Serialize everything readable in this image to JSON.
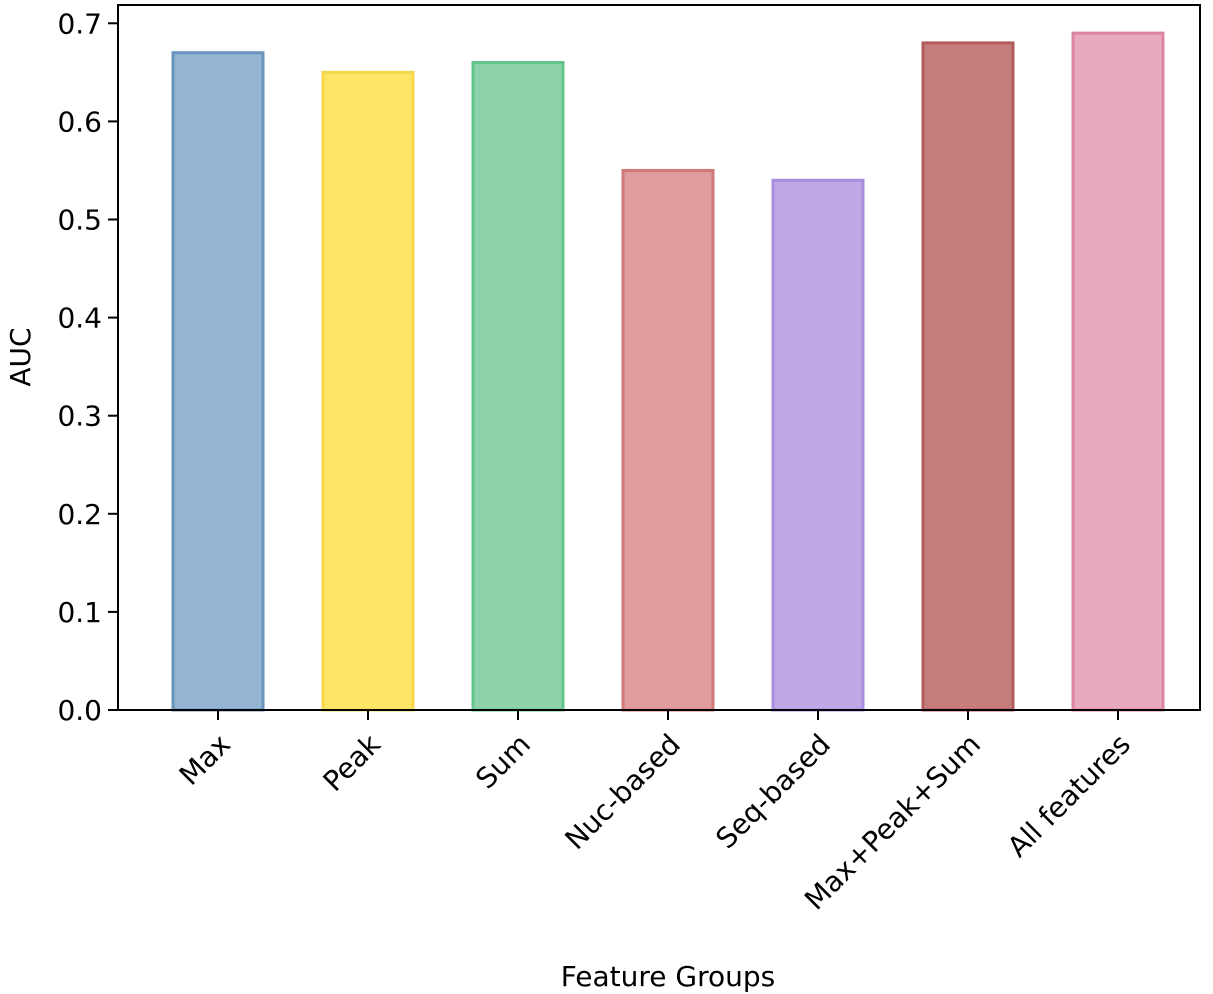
{
  "chart_data": {
    "type": "bar",
    "title": "",
    "xlabel": "Feature Groups",
    "ylabel": "AUC",
    "ylim": [
      0,
      0.72
    ],
    "yticks": [
      0.0,
      0.1,
      0.2,
      0.3,
      0.4,
      0.5,
      0.6,
      0.7
    ],
    "ytick_labels": [
      "0.0",
      "0.1",
      "0.2",
      "0.3",
      "0.4",
      "0.5",
      "0.6",
      "0.7"
    ],
    "categories": [
      "Max",
      "Peak",
      "Sum",
      "Nuc-based",
      "Seq-based",
      "Max+Peak+Sum",
      "All features"
    ],
    "values": [
      0.67,
      0.65,
      0.66,
      0.55,
      0.54,
      0.68,
      0.69
    ],
    "colors": [
      "#93b4d2",
      "#fde566",
      "#8dd2aa",
      "#e09c9c",
      "#bfa8e6",
      "#c87d7d",
      "#e8a9be"
    ],
    "edge_colors": [
      "#6a93bd",
      "#f5d84a",
      "#62c48a",
      "#cf7a7a",
      "#a98dde",
      "#b35c5c",
      "#db85a2"
    ],
    "grid": false,
    "legend": "none"
  }
}
